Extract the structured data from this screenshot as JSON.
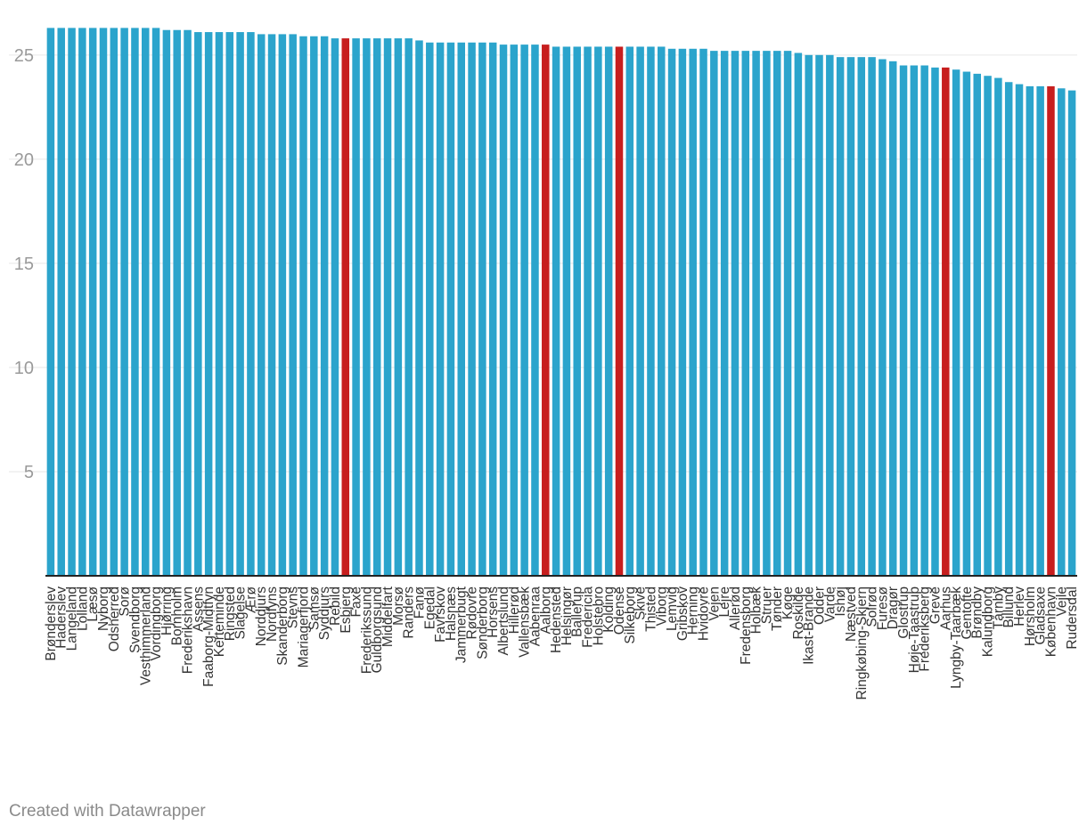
{
  "chart_data": {
    "type": "bar",
    "orientation": "vertical",
    "title": "",
    "xlabel": "",
    "ylabel": "",
    "ylim": [
      0,
      27
    ],
    "yticks": [
      5,
      10,
      15,
      20,
      25
    ],
    "grid": true,
    "colors": {
      "default": "#2ba4cc",
      "highlight": "#c71e1e",
      "axis": "#222222",
      "grid": "#e6e6e6"
    },
    "categories": [
      "Brønderslev",
      "Haderslev",
      "Langeland",
      "Lolland",
      "Læsø",
      "Nyborg",
      "Odsherred",
      "Sorø",
      "Svendborg",
      "Vesthimmerland",
      "Vordingborg",
      "Hjørring",
      "Bornholm",
      "Frederikshavn",
      "Assens",
      "Faaborg-Midtfyn",
      "Kerteminde",
      "Ringsted",
      "Slagelse",
      "Ærø",
      "Norddjurs",
      "Nordfyns",
      "Skanderborg",
      "Stevns",
      "Mariagerfjord",
      "Samsø",
      "Syddjurs",
      "Rebild",
      "Esbjerg",
      "Faxe",
      "Frederikssund",
      "Guldborgsund",
      "Middelfart",
      "Morsø",
      "Randers",
      "Fanø",
      "Egedal",
      "Favrskov",
      "Halsnæs",
      "Jammerbugt",
      "Rødovre",
      "Sønderborg",
      "Horsens",
      "Albertslund",
      "Hillerød",
      "Vallensbæk",
      "Aabenraa",
      "Aalborg",
      "Hedensted",
      "Helsingør",
      "Ballerup",
      "Fredericia",
      "Holstebro",
      "Kolding",
      "Odense",
      "Silkeborg",
      "Skive",
      "Thisted",
      "Viborg",
      "Lemvig",
      "Gribskov",
      "Herning",
      "Hvidovre",
      "Vejen",
      "Lejre",
      "Allerød",
      "Fredensborg",
      "Holbæk",
      "Struer",
      "Tønder",
      "Køge",
      "Roskilde",
      "Ikast-Brande",
      "Odder",
      "Varde",
      "Ishøj",
      "Næstved",
      "Ringkøbing-Skjern",
      "Solrød",
      "Furesø",
      "Dragør",
      "Glostrup",
      "Høje-Taastrup",
      "Frederiksberg",
      "Greve",
      "Aarhus",
      "Lyngby-Taarbæk",
      "Gentofte",
      "Brøndby",
      "Kalundborg",
      "Tårnby",
      "Billund",
      "Herlev",
      "Hørsholm",
      "Gladsaxe",
      "København",
      "Vejle",
      "Rudersdal"
    ],
    "values": [
      26.3,
      26.3,
      26.3,
      26.3,
      26.3,
      26.3,
      26.3,
      26.3,
      26.3,
      26.3,
      26.3,
      26.2,
      26.2,
      26.2,
      26.1,
      26.1,
      26.1,
      26.1,
      26.1,
      26.1,
      26.0,
      26.0,
      26.0,
      26.0,
      25.9,
      25.9,
      25.9,
      25.8,
      25.8,
      25.8,
      25.8,
      25.8,
      25.8,
      25.8,
      25.8,
      25.7,
      25.6,
      25.6,
      25.6,
      25.6,
      25.6,
      25.6,
      25.6,
      25.5,
      25.5,
      25.5,
      25.5,
      25.5,
      25.4,
      25.4,
      25.4,
      25.4,
      25.4,
      25.4,
      25.4,
      25.4,
      25.4,
      25.4,
      25.4,
      25.3,
      25.3,
      25.3,
      25.3,
      25.2,
      25.2,
      25.2,
      25.2,
      25.2,
      25.2,
      25.2,
      25.2,
      25.1,
      25.0,
      25.0,
      25.0,
      24.9,
      24.9,
      24.9,
      24.9,
      24.8,
      24.7,
      24.5,
      24.5,
      24.5,
      24.4,
      24.4,
      24.3,
      24.2,
      24.1,
      24.0,
      23.9,
      23.7,
      23.6,
      23.5,
      23.5,
      23.5,
      23.4,
      23.3
    ],
    "highlighted": [
      "Esbjerg",
      "Aalborg",
      "Odense",
      "Aarhus",
      "København"
    ]
  },
  "footer": {
    "credit": "Created with Datawrapper"
  }
}
